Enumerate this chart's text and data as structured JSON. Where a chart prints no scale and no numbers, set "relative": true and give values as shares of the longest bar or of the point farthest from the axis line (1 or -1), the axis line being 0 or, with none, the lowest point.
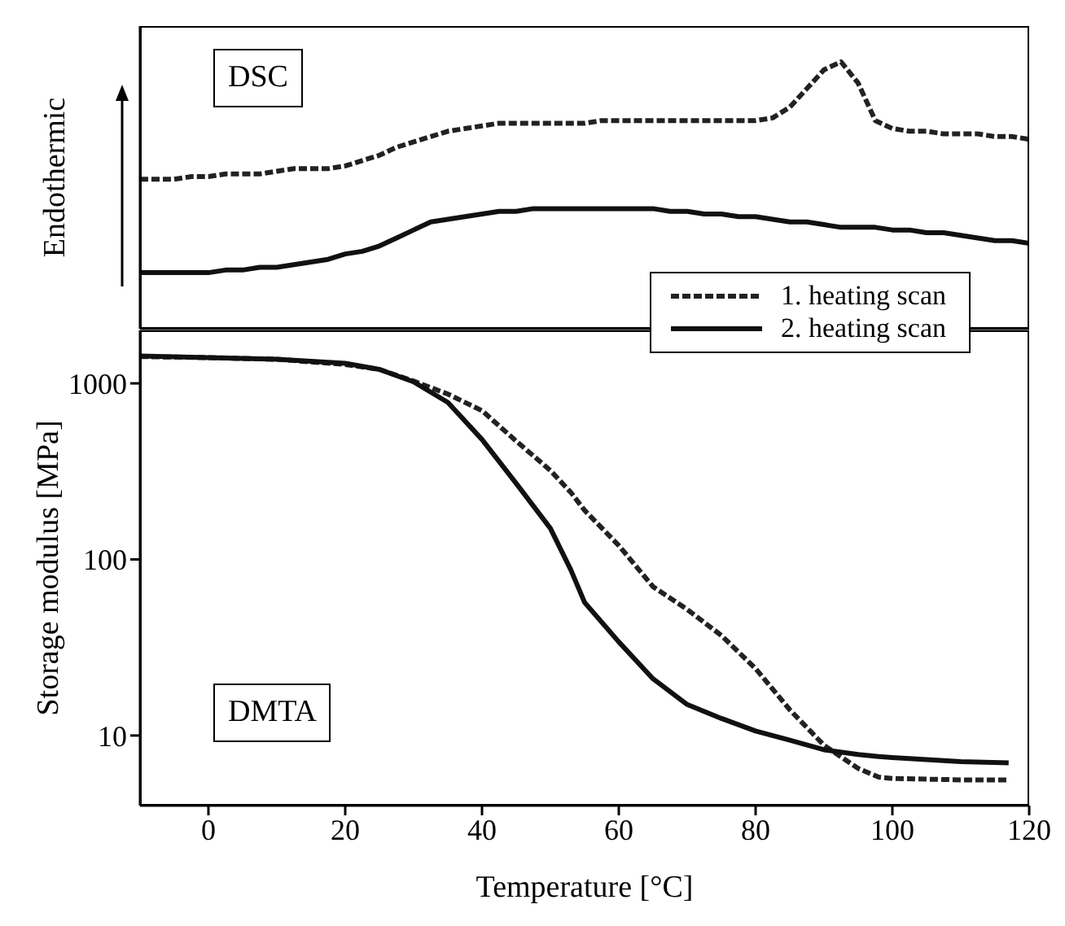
{
  "chart_data": [
    {
      "type": "line",
      "relative": true,
      "ylabel": "Endothermic",
      "annotations": [
        "DSC"
      ],
      "legend": false,
      "categories": [
        null,
        null,
        null,
        null,
        null,
        null,
        null,
        null,
        null,
        null,
        null,
        null,
        null,
        null,
        null,
        null,
        null,
        null,
        null,
        null,
        null,
        null,
        null,
        null,
        null,
        null,
        null,
        null,
        null,
        null,
        null,
        null,
        null,
        null,
        null,
        null,
        null,
        null,
        null,
        null,
        null,
        null,
        null,
        null,
        null,
        null,
        null,
        null,
        null,
        null,
        null,
        null,
        null
      ],
      "series": [
        {
          "color": "#222222",
          "line_style": "dashed",
          "values": [
            0.56,
            0.56,
            0.56,
            0.57,
            0.57,
            0.58,
            0.58,
            0.58,
            0.59,
            0.6,
            0.6,
            0.6,
            0.61,
            0.63,
            0.65,
            0.68,
            0.7,
            0.72,
            0.74,
            0.75,
            0.76,
            0.77,
            0.77,
            0.77,
            0.77,
            0.77,
            0.77,
            0.78,
            0.78,
            0.78,
            0.78,
            0.78,
            0.78,
            0.78,
            0.78,
            0.78,
            0.78,
            0.79,
            0.83,
            0.9,
            0.97,
            1,
            0.92,
            0.78,
            0.75,
            0.74,
            0.74,
            0.73,
            0.73,
            0.73,
            0.72,
            0.72,
            0.71
          ]
        },
        {
          "color": "#111111",
          "line_style": "solid",
          "values": [
            0.21,
            0.21,
            0.21,
            0.21,
            0.21,
            0.22,
            0.22,
            0.23,
            0.23,
            0.24,
            0.25,
            0.26,
            0.28,
            0.29,
            0.31,
            0.34,
            0.37,
            0.4,
            0.41,
            0.42,
            0.43,
            0.44,
            0.44,
            0.45,
            0.45,
            0.45,
            0.45,
            0.45,
            0.45,
            0.45,
            0.45,
            0.44,
            0.44,
            0.43,
            0.43,
            0.42,
            0.42,
            0.41,
            0.4,
            0.4,
            0.39,
            0.38,
            0.38,
            0.38,
            0.37,
            0.37,
            0.36,
            0.36,
            0.35,
            0.34,
            0.33,
            0.33,
            0.32
          ]
        }
      ]
    },
    {
      "type": "line",
      "xlabel": "Temperature [°C]",
      "ylabel": "Storage modulus [MPa]",
      "annotations": [
        "DMTA"
      ],
      "log": "y",
      "xlim": [
        -10,
        120
      ],
      "xticks": [
        0,
        20,
        40,
        60,
        80,
        100,
        120
      ],
      "ylim": [
        4,
        2000
      ],
      "yticks": [
        10,
        100,
        1000
      ],
      "legend": "top right",
      "x": [
        -10,
        0,
        10,
        20,
        25,
        30,
        35,
        40,
        45,
        50,
        53,
        55,
        60,
        65,
        70,
        75,
        80,
        85,
        90,
        95,
        98,
        100,
        110,
        117
      ],
      "series": [
        {
          "name": "1. heating scan",
          "color": "#222222",
          "line_style": "dashed",
          "values": [
            1420,
            1400,
            1370,
            1280,
            1200,
            1030,
            870,
            700,
            470,
            320,
            240,
            190,
            120,
            70,
            52,
            37,
            24,
            14,
            8.8,
            6.5,
            5.8,
            5.7,
            5.6,
            5.6
          ]
        },
        {
          "name": "2. heating scan",
          "color": "#111111",
          "line_style": "solid",
          "values": [
            1430,
            1400,
            1370,
            1300,
            1200,
            1020,
            780,
            480,
            270,
            150,
            87,
            57,
            34,
            21,
            15,
            12.5,
            10.6,
            9.4,
            8.3,
            7.8,
            7.6,
            7.5,
            7.1,
            7
          ]
        }
      ]
    }
  ]
}
